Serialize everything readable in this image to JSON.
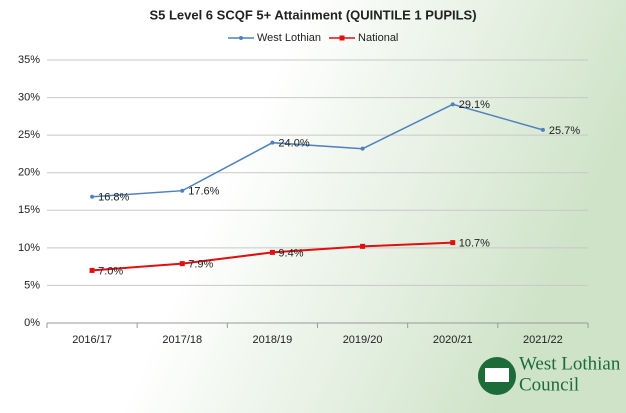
{
  "chart_data": {
    "type": "line",
    "title": "S5 Level 6 SCQF 5+ Attainment (QUINTILE 1 PUPILS)",
    "categories": [
      "2016/17",
      "2017/18",
      "2018/19",
      "2019/20",
      "2020/21",
      "2021/22"
    ],
    "series": [
      {
        "name": "West Lothian",
        "color": "#4f81bd",
        "values": [
          16.8,
          17.6,
          24.0,
          23.2,
          29.1,
          25.7
        ],
        "value_labels": [
          "16.8%",
          "17.6%",
          "24.0%",
          null,
          "29.1%",
          "25.7%"
        ]
      },
      {
        "name": "National",
        "color": "#e01010",
        "values": [
          7.0,
          7.9,
          9.4,
          10.2,
          10.7,
          null
        ],
        "value_labels": [
          "7.0%",
          "7.9%",
          "9.4%",
          null,
          "10.7%",
          null
        ]
      }
    ],
    "ylim": [
      0,
      35
    ],
    "yticks": [
      {
        "value": 0,
        "label": "0%"
      },
      {
        "value": 5,
        "label": "5%"
      },
      {
        "value": 10,
        "label": "10%"
      },
      {
        "value": 15,
        "label": "15%"
      },
      {
        "value": 20,
        "label": "20%"
      },
      {
        "value": 25,
        "label": "25%"
      },
      {
        "value": 30,
        "label": "30%"
      },
      {
        "value": 35,
        "label": "35%"
      }
    ],
    "grid": true,
    "legend": "top"
  },
  "logo_text": [
    "West Lothian",
    "Council"
  ]
}
